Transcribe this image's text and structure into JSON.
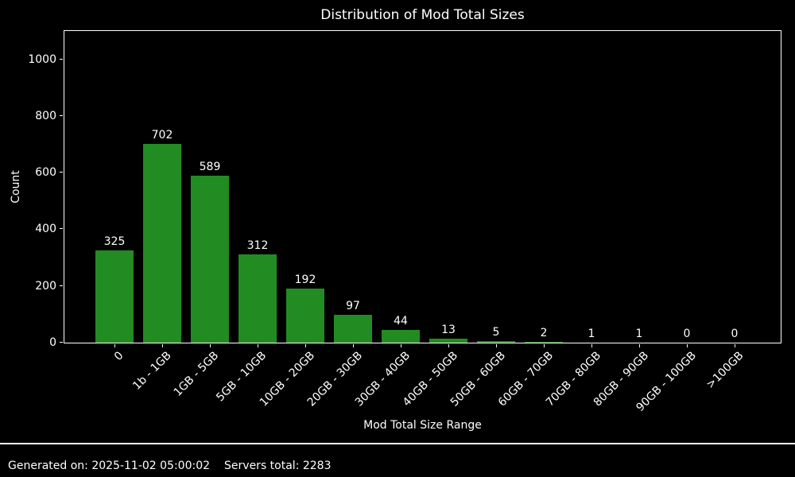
{
  "chart_data": {
    "type": "bar",
    "title": "Distribution of Mod Total Sizes",
    "xlabel": "Mod Total Size Range",
    "ylabel": "Count",
    "categories": [
      "0",
      "1b - 1GB",
      "1GB - 5GB",
      "5GB - 10GB",
      "10GB - 20GB",
      "20GB - 30GB",
      "30GB - 40GB",
      "40GB - 50GB",
      "50GB - 60GB",
      "60GB - 70GB",
      "70GB - 80GB",
      "80GB - 90GB",
      "90GB - 100GB",
      ">100GB"
    ],
    "values": [
      325,
      702,
      589,
      312,
      192,
      97,
      44,
      13,
      5,
      2,
      1,
      1,
      0,
      0
    ],
    "ylim": [
      0,
      1100
    ],
    "yticks": [
      0,
      200,
      400,
      600,
      800,
      1000
    ],
    "bar_color": "#228B22",
    "background_color": "#000000",
    "text_color": "#ffffff",
    "grid": false,
    "legend_position": "none",
    "bar_value_labels": true,
    "x_tick_rotation": 45
  },
  "footer": {
    "generated": "Generated on: 2025-11-02 05:00:02",
    "servers_total": "Servers total: 2283"
  }
}
